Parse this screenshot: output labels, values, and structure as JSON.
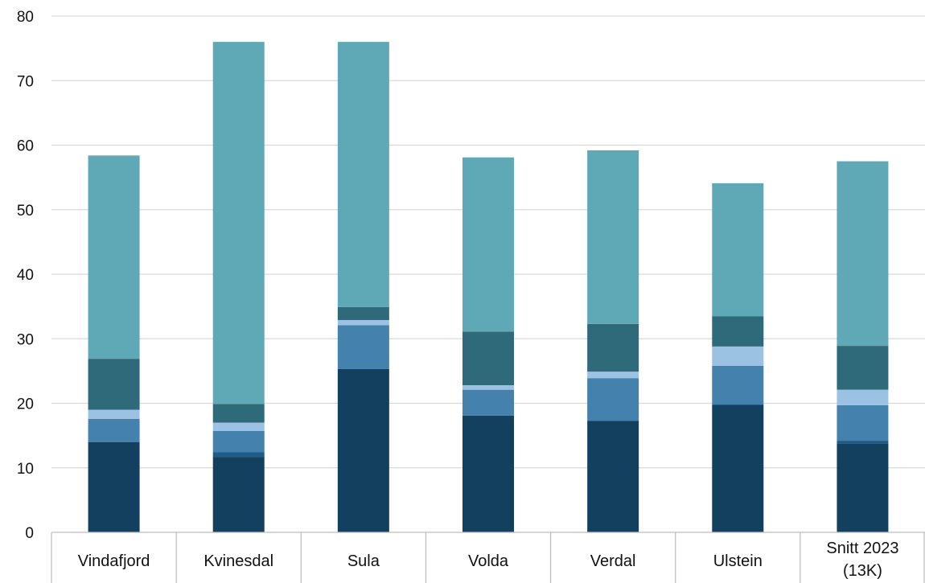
{
  "chart_data": {
    "type": "bar",
    "stacked": true,
    "categories": [
      [
        "Vindafjord"
      ],
      [
        "Kvinesdal"
      ],
      [
        "Sula"
      ],
      [
        "Volda"
      ],
      [
        "Verdal"
      ],
      [
        "Ulstein"
      ],
      [
        "Snitt 2023",
        "(13K)"
      ]
    ],
    "series": [
      {
        "color": "#14405f",
        "values": [
          14.0,
          11.7,
          25.3,
          18.1,
          17.3,
          19.8,
          13.8
        ]
      },
      {
        "color": "#1f5c8b",
        "values": [
          0.0,
          0.7,
          0.0,
          0.0,
          0.0,
          0.0,
          0.4
        ]
      },
      {
        "color": "#4581ad",
        "values": [
          3.6,
          3.3,
          6.8,
          4.0,
          6.6,
          6.0,
          5.5
        ]
      },
      {
        "color": "#9bc2e3",
        "values": [
          1.4,
          1.3,
          0.8,
          0.7,
          1.0,
          3.0,
          2.4
        ]
      },
      {
        "color": "#2f6a7a",
        "values": [
          7.9,
          2.9,
          2.0,
          8.3,
          7.4,
          4.7,
          6.8
        ]
      },
      {
        "color": "#5fa8b5",
        "values": [
          31.5,
          56.1,
          41.1,
          27.0,
          26.9,
          20.6,
          28.6
        ]
      }
    ],
    "ylim": [
      0,
      80
    ],
    "yticks": [
      0,
      10,
      20,
      30,
      40,
      50,
      60,
      70,
      80
    ],
    "grid": true,
    "legend": "none"
  }
}
